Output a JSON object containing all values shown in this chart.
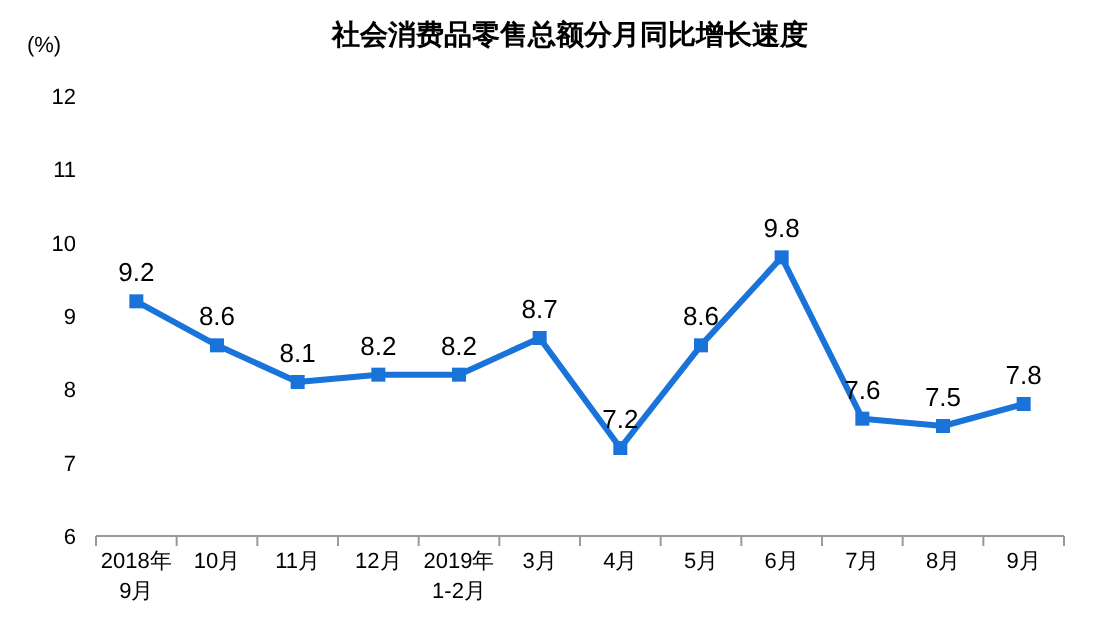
{
  "chart_data": {
    "type": "line",
    "title": "社会消费品零售总额分月同比增长速度",
    "ylabel": "(%)",
    "categories": [
      "2018年\n9月",
      "10月",
      "11月",
      "12月",
      "2019年\n1-2月",
      "3月",
      "4月",
      "5月",
      "6月",
      "7月",
      "8月",
      "9月"
    ],
    "series": [
      {
        "color": "#1a73d9",
        "values": [
          9.2,
          8.6,
          8.1,
          8.2,
          8.2,
          8.7,
          7.2,
          8.6,
          9.8,
          7.6,
          7.5,
          7.8
        ]
      }
    ],
    "ylim": [
      6,
      12
    ],
    "yticks": [
      6,
      7,
      8,
      9,
      10,
      11,
      12
    ],
    "marker": "square",
    "data_labels": true
  }
}
